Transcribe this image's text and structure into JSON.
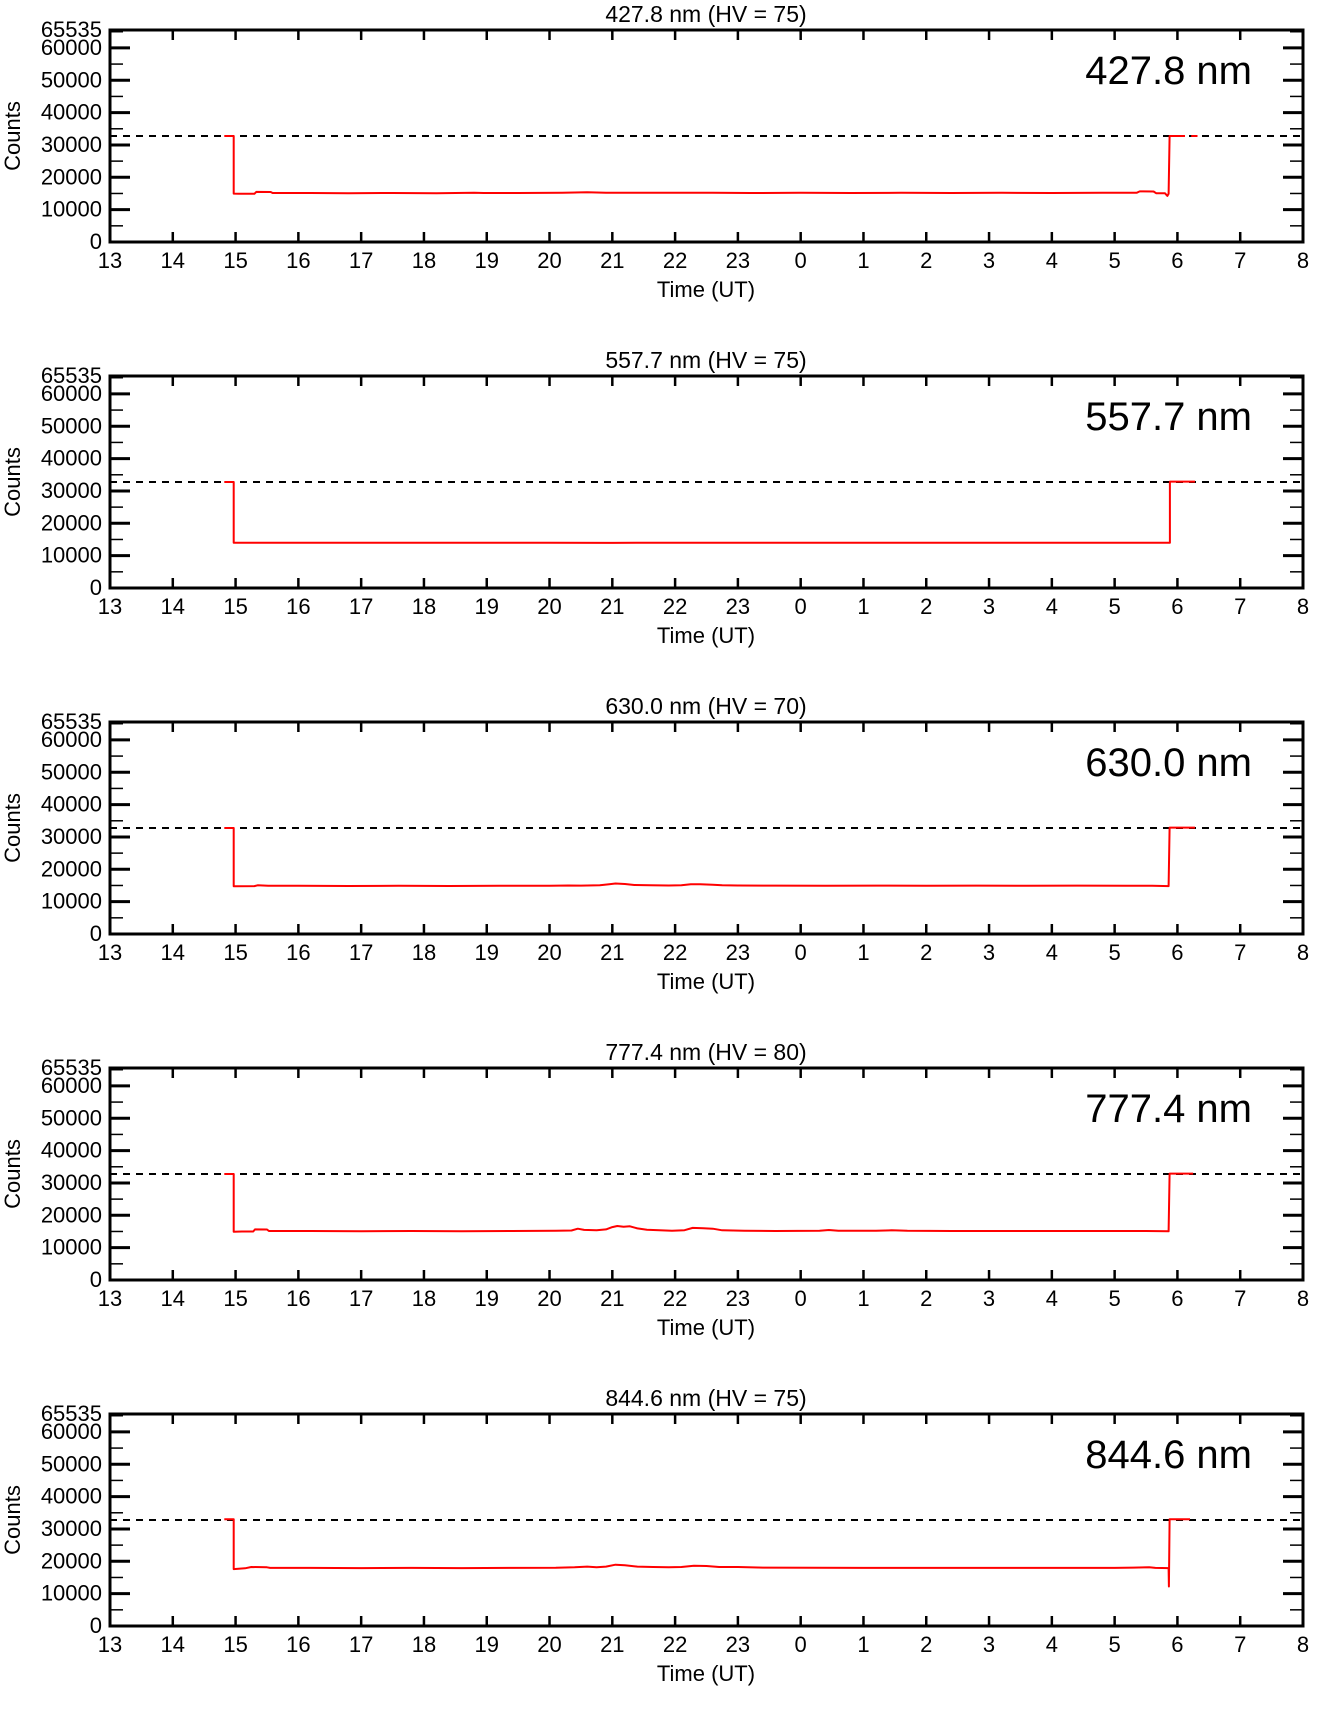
{
  "figure": {
    "background": "#ffffff",
    "trace_color": "#ff0000",
    "axis_color": "#000000",
    "description": "Five stacked photometer count time-series panels at different wavelengths"
  },
  "chart_data": {
    "type": "line",
    "legend": "none",
    "grid": "off",
    "axes": {
      "x": {
        "label": "Time (UT)",
        "min": 13,
        "max": 32,
        "ticks": [
          13,
          14,
          15,
          16,
          17,
          18,
          19,
          20,
          21,
          22,
          23,
          24,
          25,
          26,
          27,
          28,
          29,
          30,
          31,
          32
        ],
        "tick_labels": [
          "13",
          "14",
          "15",
          "16",
          "17",
          "18",
          "19",
          "20",
          "21",
          "22",
          "23",
          "0",
          "1",
          "2",
          "3",
          "4",
          "5",
          "6",
          "7",
          "8"
        ]
      },
      "y": {
        "label": "Counts",
        "min": 0,
        "max": 65535,
        "major_ticks": [
          0,
          10000,
          20000,
          30000,
          40000,
          50000,
          60000,
          65535
        ],
        "major_tick_labels": [
          "0",
          "10000",
          "20000",
          "30000",
          "40000",
          "50000",
          "60000",
          "65535"
        ],
        "minor_ticks": [
          5000,
          15000,
          25000,
          35000,
          45000,
          55000,
          65000
        ]
      }
    },
    "charts": [
      {
        "title": "427.8 nm (HV = 75)",
        "inset_label": "427.8 nm",
        "wavelength_nm": 427.8,
        "hv": 75,
        "threshold_dashed_line": 32768,
        "baseline_counts": 15100,
        "segments": [
          [
            [
              14.82,
              32768
            ],
            [
              14.97,
              32768
            ],
            [
              14.97,
              14950
            ],
            [
              15.05,
              14900
            ],
            [
              15.3,
              14900
            ],
            [
              15.33,
              15500
            ],
            [
              15.56,
              15450
            ],
            [
              15.59,
              15150
            ],
            [
              16.2,
              15150
            ],
            [
              16.8,
              15100
            ],
            [
              17.5,
              15150
            ],
            [
              18.2,
              15100
            ],
            [
              18.8,
              15250
            ],
            [
              18.95,
              15150
            ],
            [
              19.5,
              15150
            ],
            [
              20.2,
              15200
            ],
            [
              20.6,
              15350
            ],
            [
              20.9,
              15200
            ],
            [
              21.4,
              15250
            ],
            [
              22.0,
              15200
            ],
            [
              22.6,
              15250
            ],
            [
              23.2,
              15150
            ],
            [
              24.0,
              15200
            ],
            [
              24.8,
              15150
            ],
            [
              25.6,
              15200
            ],
            [
              26.4,
              15150
            ],
            [
              27.2,
              15200
            ],
            [
              28.0,
              15150
            ],
            [
              28.8,
              15200
            ],
            [
              29.35,
              15200
            ],
            [
              29.4,
              15650
            ],
            [
              29.62,
              15600
            ],
            [
              29.66,
              15100
            ],
            [
              29.8,
              15100
            ],
            [
              29.84,
              14250
            ],
            [
              29.86,
              14900
            ],
            [
              29.875,
              32768
            ],
            [
              30.12,
              32768
            ]
          ],
          [
            [
              30.22,
              32768
            ],
            [
              30.32,
              32768
            ]
          ]
        ]
      },
      {
        "title": "557.7 nm (HV = 75)",
        "inset_label": "557.7 nm",
        "wavelength_nm": 557.7,
        "hv": 75,
        "threshold_dashed_line": 32768,
        "baseline_counts": 14000,
        "segments": [
          [
            [
              14.82,
              32768
            ],
            [
              14.97,
              32768
            ],
            [
              14.97,
              14000
            ],
            [
              17.0,
              14000
            ],
            [
              20.0,
              13980
            ],
            [
              21.0,
              13950
            ],
            [
              21.8,
              14000
            ],
            [
              22.5,
              13960
            ],
            [
              23.2,
              14000
            ],
            [
              26.0,
              13990
            ],
            [
              29.5,
              14000
            ],
            [
              29.88,
              14000
            ],
            [
              29.88,
              32900
            ],
            [
              30.28,
              32900
            ]
          ]
        ]
      },
      {
        "title": "630.0 nm (HV = 70)",
        "inset_label": "630.0 nm",
        "wavelength_nm": 630.0,
        "hv": 70,
        "threshold_dashed_line": 32768,
        "baseline_counts": 14900,
        "segments": [
          [
            [
              14.82,
              32768
            ],
            [
              14.97,
              32768
            ],
            [
              14.97,
              14750
            ],
            [
              15.3,
              14800
            ],
            [
              15.35,
              15050
            ],
            [
              15.52,
              14900
            ],
            [
              16.0,
              14900
            ],
            [
              16.8,
              14850
            ],
            [
              17.6,
              14900
            ],
            [
              18.4,
              14850
            ],
            [
              19.2,
              14900
            ],
            [
              20.0,
              14900
            ],
            [
              20.3,
              15000
            ],
            [
              20.5,
              14950
            ],
            [
              20.8,
              15050
            ],
            [
              20.95,
              15350
            ],
            [
              21.05,
              15600
            ],
            [
              21.2,
              15450
            ],
            [
              21.35,
              15150
            ],
            [
              21.6,
              15050
            ],
            [
              21.9,
              15000
            ],
            [
              22.1,
              15050
            ],
            [
              22.25,
              15350
            ],
            [
              22.4,
              15400
            ],
            [
              22.6,
              15250
            ],
            [
              22.75,
              15050
            ],
            [
              23.0,
              15000
            ],
            [
              23.6,
              14950
            ],
            [
              24.4,
              14900
            ],
            [
              25.2,
              14950
            ],
            [
              26.0,
              14900
            ],
            [
              26.8,
              14950
            ],
            [
              27.6,
              14900
            ],
            [
              28.4,
              14950
            ],
            [
              29.2,
              14900
            ],
            [
              29.6,
              14900
            ],
            [
              29.86,
              14800
            ],
            [
              29.875,
              32900
            ],
            [
              30.28,
              32900
            ]
          ]
        ]
      },
      {
        "title": "777.4 nm (HV = 80)",
        "inset_label": "777.4 nm",
        "wavelength_nm": 777.4,
        "hv": 80,
        "threshold_dashed_line": 32768,
        "baseline_counts": 15150,
        "segments": [
          [
            [
              14.82,
              32768
            ],
            [
              14.97,
              32768
            ],
            [
              14.97,
              14900
            ],
            [
              15.1,
              15000
            ],
            [
              15.28,
              15000
            ],
            [
              15.31,
              15650
            ],
            [
              15.5,
              15600
            ],
            [
              15.53,
              15150
            ],
            [
              16.2,
              15150
            ],
            [
              17.0,
              15100
            ],
            [
              17.8,
              15150
            ],
            [
              18.6,
              15100
            ],
            [
              19.4,
              15150
            ],
            [
              20.1,
              15200
            ],
            [
              20.35,
              15300
            ],
            [
              20.45,
              15850
            ],
            [
              20.55,
              15500
            ],
            [
              20.75,
              15350
            ],
            [
              20.9,
              15650
            ],
            [
              21.0,
              16350
            ],
            [
              21.08,
              16700
            ],
            [
              21.18,
              16450
            ],
            [
              21.28,
              16600
            ],
            [
              21.4,
              15950
            ],
            [
              21.55,
              15550
            ],
            [
              21.75,
              15350
            ],
            [
              21.95,
              15250
            ],
            [
              22.15,
              15400
            ],
            [
              22.28,
              16100
            ],
            [
              22.45,
              16000
            ],
            [
              22.6,
              15850
            ],
            [
              22.75,
              15350
            ],
            [
              23.1,
              15250
            ],
            [
              23.6,
              15150
            ],
            [
              24.3,
              15200
            ],
            [
              24.45,
              15450
            ],
            [
              24.6,
              15200
            ],
            [
              25.2,
              15250
            ],
            [
              25.45,
              15350
            ],
            [
              25.7,
              15200
            ],
            [
              26.4,
              15150
            ],
            [
              27.2,
              15150
            ],
            [
              28.0,
              15150
            ],
            [
              28.8,
              15150
            ],
            [
              29.5,
              15150
            ],
            [
              29.86,
              15050
            ],
            [
              29.875,
              32900
            ],
            [
              30.25,
              32900
            ]
          ]
        ]
      },
      {
        "title": "844.6 nm (HV = 75)",
        "inset_label": "844.6 nm",
        "wavelength_nm": 844.6,
        "hv": 75,
        "threshold_dashed_line": 32768,
        "baseline_counts": 17950,
        "segments": [
          [
            [
              14.82,
              33000
            ],
            [
              14.97,
              33000
            ],
            [
              14.97,
              17600
            ],
            [
              15.15,
              17850
            ],
            [
              15.25,
              18250
            ],
            [
              15.5,
              18150
            ],
            [
              15.55,
              17950
            ],
            [
              16.2,
              17950
            ],
            [
              17.0,
              17900
            ],
            [
              17.8,
              17950
            ],
            [
              18.6,
              17900
            ],
            [
              19.4,
              17950
            ],
            [
              20.1,
              18000
            ],
            [
              20.4,
              18150
            ],
            [
              20.6,
              18350
            ],
            [
              20.75,
              18150
            ],
            [
              20.9,
              18350
            ],
            [
              21.05,
              18950
            ],
            [
              21.2,
              18750
            ],
            [
              21.4,
              18350
            ],
            [
              21.65,
              18250
            ],
            [
              21.9,
              18150
            ],
            [
              22.1,
              18250
            ],
            [
              22.3,
              18650
            ],
            [
              22.5,
              18550
            ],
            [
              22.7,
              18250
            ],
            [
              23.0,
              18250
            ],
            [
              23.4,
              18050
            ],
            [
              24.2,
              18000
            ],
            [
              25.0,
              17950
            ],
            [
              25.8,
              17950
            ],
            [
              26.6,
              17950
            ],
            [
              27.4,
              17950
            ],
            [
              28.2,
              17950
            ],
            [
              29.0,
              17950
            ],
            [
              29.3,
              18050
            ],
            [
              29.55,
              18150
            ],
            [
              29.65,
              17950
            ],
            [
              29.86,
              17900
            ],
            [
              29.865,
              12200
            ],
            [
              29.875,
              33000
            ],
            [
              30.2,
              33000
            ]
          ]
        ]
      }
    ]
  }
}
